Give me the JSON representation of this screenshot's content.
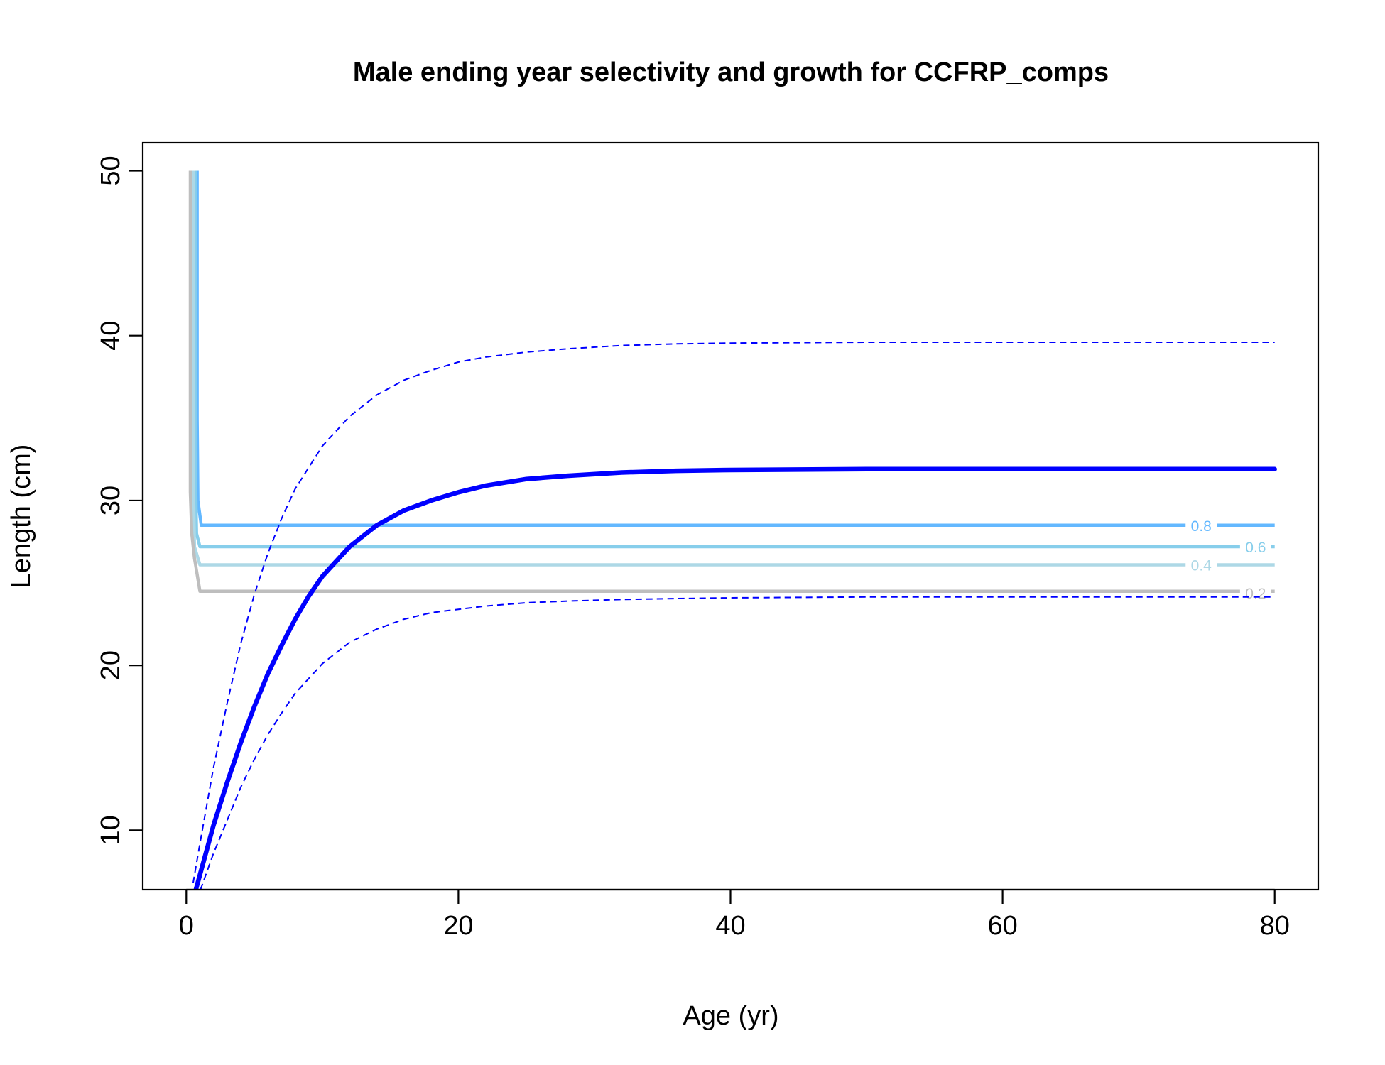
{
  "chart_data": {
    "type": "line",
    "title": "Male ending year selectivity and growth for CCFRP_comps",
    "xlabel": "Age (yr)",
    "ylabel": "Length (cm)",
    "xlim": [
      -3.2,
      83.2
    ],
    "ylim": [
      6.4,
      51.7
    ],
    "xticks": [
      0,
      20,
      40,
      60,
      80
    ],
    "yticks": [
      10,
      20,
      30,
      40,
      50
    ],
    "grid": false,
    "legend": "none",
    "colors": {
      "growth": "#0000ff",
      "sel_0_8": "#63b8ff",
      "sel_0_6": "#87ceeb",
      "sel_0_4": "#add8e6",
      "sel_0_2": "#bebebe"
    },
    "growth_curve": {
      "style": "solid-thick",
      "x": [
        0.5,
        1,
        2,
        3,
        4,
        5,
        6,
        7,
        8,
        9,
        10,
        12,
        14,
        16,
        18,
        20,
        22,
        25,
        28,
        32,
        36,
        40,
        50,
        60,
        70,
        80
      ],
      "y": [
        5.8,
        7.3,
        10.3,
        12.9,
        15.3,
        17.5,
        19.5,
        21.2,
        22.8,
        24.2,
        25.4,
        27.2,
        28.5,
        29.4,
        30.0,
        30.5,
        30.9,
        31.3,
        31.5,
        31.7,
        31.8,
        31.85,
        31.9,
        31.9,
        31.9,
        31.9
      ]
    },
    "upper_interval": {
      "style": "dashed",
      "x": [
        0.5,
        1,
        2,
        3,
        4,
        5,
        6,
        7,
        8,
        10,
        12,
        14,
        16,
        18,
        20,
        22,
        25,
        28,
        32,
        36,
        40,
        50,
        60,
        70,
        80
      ],
      "y": [
        6.8,
        9.2,
        13.8,
        17.7,
        21.3,
        24.3,
        26.8,
        28.9,
        30.7,
        33.3,
        35.1,
        36.4,
        37.3,
        37.9,
        38.4,
        38.7,
        39.0,
        39.2,
        39.4,
        39.5,
        39.55,
        39.6,
        39.6,
        39.6,
        39.6
      ]
    },
    "lower_interval": {
      "style": "dashed",
      "x": [
        0.5,
        1,
        2,
        3,
        4,
        5,
        6,
        7,
        8,
        10,
        12,
        14,
        16,
        18,
        20,
        22,
        25,
        28,
        32,
        36,
        40,
        50,
        60,
        70,
        80
      ],
      "y": [
        4.5,
        6.3,
        8.6,
        10.6,
        12.6,
        14.3,
        15.8,
        17.1,
        18.3,
        20.1,
        21.4,
        22.2,
        22.8,
        23.2,
        23.4,
        23.6,
        23.8,
        23.9,
        24.0,
        24.05,
        24.1,
        24.15,
        24.15,
        24.15,
        24.15
      ]
    },
    "selectivity_contours": [
      {
        "label": "0.8",
        "color": "#63b8ff",
        "x": [
          0.8,
          0.8,
          0.85,
          1.1,
          80
        ],
        "y": [
          50,
          35,
          30.0,
          28.5,
          28.5
        ],
        "label_x": 74.6,
        "label_y": 28.5
      },
      {
        "label": "0.6",
        "color": "#87ceeb",
        "x": [
          0.65,
          0.65,
          0.75,
          1.0,
          80
        ],
        "y": [
          50,
          33,
          28.0,
          27.2,
          27.2
        ],
        "label_x": 78.6,
        "label_y": 27.2
      },
      {
        "label": "0.4",
        "color": "#add8e6",
        "x": [
          0.5,
          0.5,
          0.6,
          1.0,
          80
        ],
        "y": [
          50,
          32,
          27.2,
          26.1,
          26.1
        ],
        "label_x": 74.6,
        "label_y": 26.1
      },
      {
        "label": "0.2",
        "color": "#bebebe",
        "x": [
          0.3,
          0.3,
          0.4,
          0.6,
          1.0,
          80
        ],
        "y": [
          50,
          30.5,
          28.0,
          26.5,
          24.5,
          24.5
        ],
        "label_x": 78.6,
        "label_y": 24.4
      }
    ]
  }
}
